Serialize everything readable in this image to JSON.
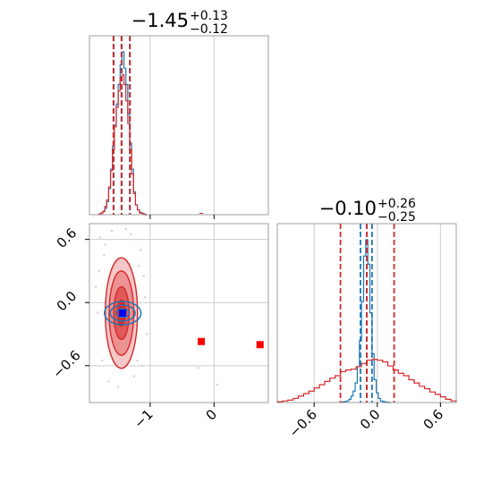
{
  "chart_data": [
    {
      "type": "histogram",
      "panel": "top-left",
      "title": {
        "median": "−1.45",
        "upper": "+0.13",
        "lower": "−0.12"
      },
      "xlim": [
        -1.95,
        0.85
      ],
      "x_ticks": [
        -1,
        0
      ],
      "grid": true,
      "series": [
        {
          "name": "",
          "color": "#1f77b4",
          "bins": [
            -1.8,
            -1.77,
            -1.74,
            -1.71,
            -1.68,
            -1.65,
            -1.62,
            -1.59,
            -1.56,
            -1.53,
            -1.5,
            -1.47,
            -1.44,
            -1.41,
            -1.38,
            -1.35,
            -1.32,
            -1.29,
            -1.26,
            -1.23,
            -1.2,
            -1.17,
            -1.14,
            -1.11,
            -1.08
          ],
          "values": [
            0.005,
            0.01,
            0.02,
            0.04,
            0.08,
            0.16,
            0.28,
            0.42,
            0.55,
            0.68,
            0.8,
            0.92,
            1.0,
            0.9,
            0.8,
            0.62,
            0.44,
            0.28,
            0.14,
            0.06,
            0.03,
            0.015,
            0.01,
            0.005,
            0.0
          ],
          "quantiles": [
            -1.57,
            -1.45,
            -1.32
          ]
        },
        {
          "name": "",
          "color": "#d62728",
          "bins": [
            -1.8,
            -1.77,
            -1.74,
            -1.71,
            -1.68,
            -1.65,
            -1.62,
            -1.59,
            -1.56,
            -1.53,
            -1.5,
            -1.47,
            -1.44,
            -1.41,
            -1.38,
            -1.35,
            -1.32,
            -1.29,
            -1.26,
            -1.23,
            -1.2,
            -1.17,
            -1.14,
            -1.11,
            -1.08
          ],
          "values": [
            0.005,
            0.01,
            0.02,
            0.05,
            0.09,
            0.17,
            0.27,
            0.4,
            0.54,
            0.66,
            0.76,
            0.84,
            0.86,
            0.8,
            0.7,
            0.56,
            0.4,
            0.25,
            0.13,
            0.06,
            0.03,
            0.012,
            0.008,
            0.004,
            0.0
          ],
          "quantiles": [
            -1.575,
            -1.445,
            -1.315
          ]
        }
      ]
    },
    {
      "type": "histogram",
      "panel": "bottom-right",
      "title": {
        "median": "−0.10",
        "upper": "+0.26",
        "lower": "−0.25"
      },
      "xlim": [
        -0.95,
        0.75
      ],
      "x_ticks": [
        -0.6,
        0.0,
        0.6
      ],
      "x_tick_labels": [
        "−0.6",
        "0.0",
        "0.6"
      ],
      "grid": true,
      "series": [
        {
          "name": "",
          "color": "#1f77b4",
          "bins": [
            -0.35,
            -0.33,
            -0.31,
            -0.29,
            -0.27,
            -0.25,
            -0.23,
            -0.21,
            -0.19,
            -0.17,
            -0.15,
            -0.13,
            -0.11,
            -0.09,
            -0.07,
            -0.05,
            -0.03,
            -0.01,
            0.01,
            0.03,
            0.05,
            0.07,
            0.09,
            0.11
          ],
          "values": [
            0.002,
            0.004,
            0.006,
            0.01,
            0.02,
            0.04,
            0.07,
            0.12,
            0.22,
            0.38,
            0.62,
            0.9,
            1.0,
            0.85,
            0.55,
            0.3,
            0.14,
            0.06,
            0.025,
            0.01,
            0.006,
            0.004,
            0.002,
            0.0
          ],
          "quantiles": [
            -0.16,
            -0.1,
            -0.05
          ]
        },
        {
          "name": "",
          "color": "#d62728",
          "bins": [
            -0.95,
            -0.9,
            -0.85,
            -0.8,
            -0.75,
            -0.7,
            -0.65,
            -0.6,
            -0.55,
            -0.5,
            -0.45,
            -0.4,
            -0.35,
            -0.3,
            -0.25,
            -0.2,
            -0.15,
            -0.1,
            -0.05,
            0.0,
            0.05,
            0.1,
            0.15,
            0.2,
            0.25,
            0.3,
            0.35,
            0.4,
            0.45,
            0.5,
            0.55,
            0.6,
            0.65,
            0.7
          ],
          "values": [
            0.005,
            0.01,
            0.015,
            0.025,
            0.04,
            0.055,
            0.07,
            0.09,
            0.11,
            0.13,
            0.15,
            0.165,
            0.19,
            0.2,
            0.205,
            0.22,
            0.24,
            0.26,
            0.265,
            0.26,
            0.25,
            0.225,
            0.2,
            0.18,
            0.165,
            0.14,
            0.12,
            0.1,
            0.085,
            0.065,
            0.05,
            0.035,
            0.02,
            0.01
          ],
          "quantiles": [
            -0.35,
            -0.1,
            0.16
          ]
        }
      ]
    },
    {
      "type": "scatter",
      "panel": "bottom-left",
      "xlim": [
        -1.95,
        0.85
      ],
      "ylim": [
        -0.95,
        0.75
      ],
      "x_ticks": [
        -1,
        0
      ],
      "y_ticks": [
        -0.6,
        0.0,
        0.6
      ],
      "y_tick_labels": [
        "−0.6",
        "0.0",
        "0.6"
      ],
      "x_tick_labels": [
        "−1",
        "0"
      ],
      "grid": true,
      "contours": [
        {
          "name": "",
          "color": "#d62728",
          "center": [
            -1.45,
            -0.1
          ],
          "sd": [
            0.12,
            0.25
          ],
          "levels": [
            0.5,
            1.0,
            1.6,
            2.1
          ]
        },
        {
          "name": "",
          "color": "#1f77b4",
          "center": [
            -1.43,
            -0.1
          ],
          "sd": [
            0.13,
            0.05
          ],
          "levels": [
            0.8,
            1.5,
            2.2
          ]
        }
      ],
      "markers": [
        {
          "x": -1.43,
          "y": -0.1,
          "color": "#0000ff",
          "shape": "square"
        },
        {
          "x": -0.2,
          "y": -0.37,
          "color": "#ff0000",
          "shape": "square"
        },
        {
          "x": 0.72,
          "y": -0.4,
          "color": "#ff0000",
          "shape": "square"
        }
      ],
      "scatter_points": [
        [
          -1.78,
          0.62
        ],
        [
          -1.7,
          0.55
        ],
        [
          -1.22,
          0.6
        ],
        [
          -1.15,
          0.5
        ],
        [
          -1.8,
          0.3
        ],
        [
          -1.1,
          0.25
        ],
        [
          -1.75,
          -0.55
        ],
        [
          -1.65,
          -0.75
        ],
        [
          -1.25,
          -0.7
        ],
        [
          -1.05,
          -0.3
        ],
        [
          -1.12,
          -0.6
        ],
        [
          -1.82,
          -0.1
        ],
        [
          -1.6,
          0.68
        ],
        [
          -1.3,
          0.65
        ],
        [
          -1.08,
          0.05
        ],
        [
          -0.25,
          -0.62
        ],
        [
          0.05,
          -0.78
        ],
        [
          -1.2,
          -0.55
        ],
        [
          -1.85,
          0.15
        ],
        [
          -1.5,
          -0.8
        ],
        [
          -1.38,
          0.7
        ],
        [
          -1.66,
          -0.42
        ],
        [
          -1.18,
          0.35
        ],
        [
          -1.72,
          0.45
        ]
      ]
    }
  ]
}
